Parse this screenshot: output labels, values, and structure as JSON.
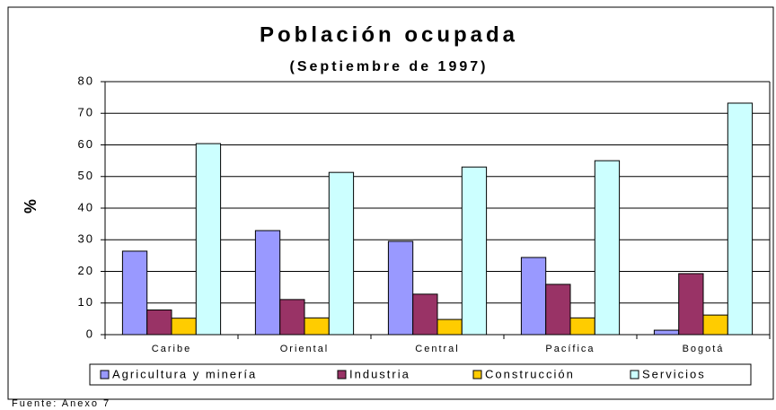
{
  "chart_data": {
    "type": "bar",
    "title": "Población ocupada",
    "subtitle": "(Septiembre de 1997)",
    "y_label": "%",
    "source": "Fuente: Anexo 7",
    "categories": [
      "Caribe",
      "Oriental",
      "Central",
      "Pacífica",
      "Bogotá"
    ],
    "series": [
      {
        "name": "Agricultura y minería",
        "color": "#9999ff",
        "values": [
          26.4,
          32.9,
          29.5,
          24.4,
          1.4
        ]
      },
      {
        "name": "Industria",
        "color": "#993366",
        "values": [
          7.8,
          11.1,
          12.8,
          15.9,
          19.3
        ]
      },
      {
        "name": "Construcción",
        "color": "#ffcc00",
        "values": [
          5.2,
          5.3,
          4.8,
          5.3,
          6.2
        ]
      },
      {
        "name": "Servicios",
        "color": "#ccffff",
        "values": [
          60.4,
          51.3,
          53,
          55,
          73.2
        ]
      }
    ],
    "ylim": [
      0,
      80
    ],
    "yticks": [
      0,
      10,
      20,
      30,
      40,
      50,
      60,
      70,
      80
    ],
    "grid": true,
    "legend": "bottom"
  }
}
